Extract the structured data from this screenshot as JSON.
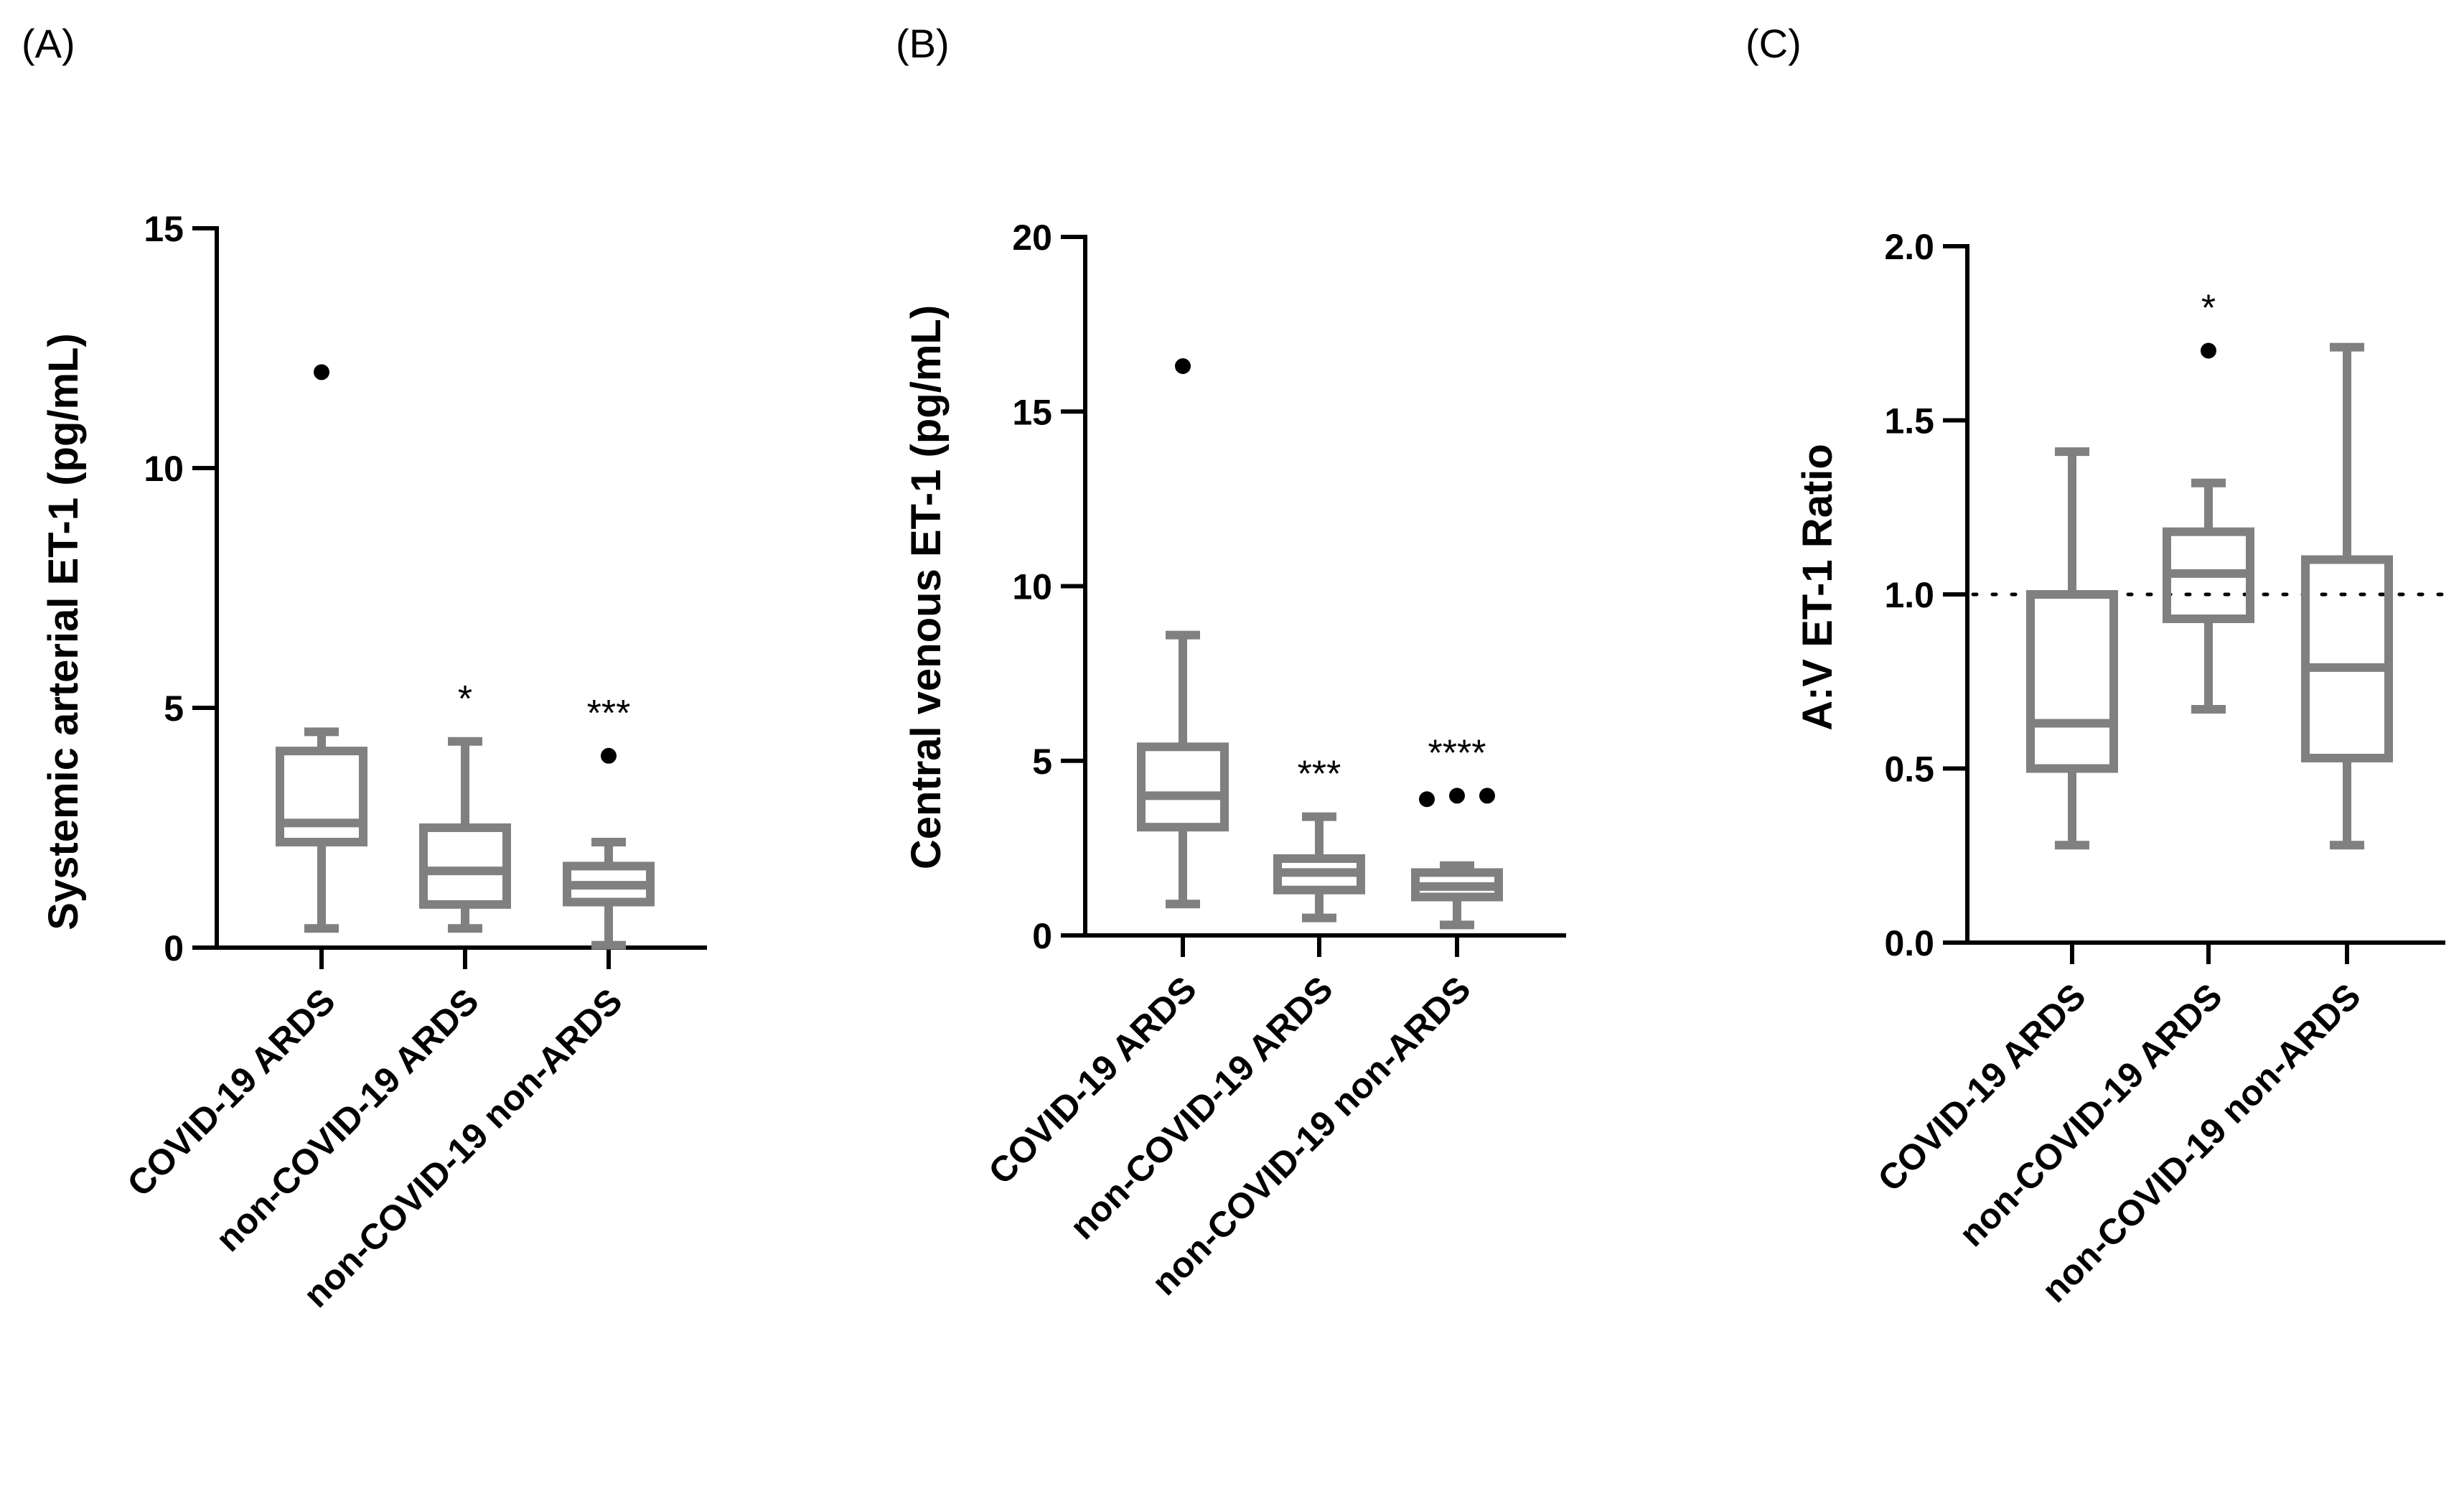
{
  "chart_data": [
    {
      "panel": "(A)",
      "type": "boxplot",
      "ylabel": "Systemic arterial ET-1 (pg/mL)",
      "ylim": [
        0,
        15
      ],
      "yticks": [
        0,
        5,
        10,
        15
      ],
      "categories": [
        "COVID-19 ARDS",
        "non-COVID-19 ARDS",
        "non-COVID-19 non-ARDS"
      ],
      "boxes": [
        {
          "whisker_low": 0.4,
          "q1": 2.2,
          "median": 2.6,
          "q3": 4.1,
          "whisker_high": 4.5,
          "outliers": [
            12.0
          ],
          "significance": ""
        },
        {
          "whisker_low": 0.4,
          "q1": 0.9,
          "median": 1.6,
          "q3": 2.5,
          "whisker_high": 4.3,
          "outliers": [],
          "significance": "*"
        },
        {
          "whisker_low": 0.05,
          "q1": 0.95,
          "median": 1.3,
          "q3": 1.7,
          "whisker_high": 2.2,
          "outliers": [
            4.0
          ],
          "significance": "***"
        }
      ],
      "reference_line": null
    },
    {
      "panel": "(B)",
      "type": "boxplot",
      "ylabel": "Central venous ET-1 (pg/mL)",
      "ylim": [
        0,
        20
      ],
      "yticks": [
        0,
        5,
        10,
        15,
        20
      ],
      "categories": [
        "COVID-19 ARDS",
        "non-COVID-19 ARDS",
        "non-COVID-19 non-ARDS"
      ],
      "boxes": [
        {
          "whisker_low": 0.9,
          "q1": 3.1,
          "median": 4.0,
          "q3": 5.4,
          "whisker_high": 8.6,
          "outliers": [
            16.3
          ],
          "significance": ""
        },
        {
          "whisker_low": 0.5,
          "q1": 1.3,
          "median": 1.8,
          "q3": 2.2,
          "whisker_high": 3.4,
          "outliers": [],
          "significance": "***"
        },
        {
          "whisker_low": 0.3,
          "q1": 1.1,
          "median": 1.4,
          "q3": 1.8,
          "whisker_high": 2.0,
          "outliers": [
            3.9,
            4.0,
            4.0
          ],
          "significance": "****"
        }
      ],
      "reference_line": null
    },
    {
      "panel": "(C)",
      "type": "boxplot",
      "ylabel": "A:V ET-1 Ratio",
      "ylim": [
        0,
        2
      ],
      "yticks": [
        "0.0",
        "0.5",
        "1.0",
        "1.5",
        "2.0"
      ],
      "categories": [
        "COVID-19 ARDS",
        "non-COVID-19 ARDS",
        "non-COVID-19 non-ARDS"
      ],
      "boxes": [
        {
          "whisker_low": 0.28,
          "q1": 0.5,
          "median": 0.63,
          "q3": 1.0,
          "whisker_high": 1.41,
          "outliers": [],
          "significance": ""
        },
        {
          "whisker_low": 0.67,
          "q1": 0.93,
          "median": 1.06,
          "q3": 1.18,
          "whisker_high": 1.32,
          "outliers": [
            1.7
          ],
          "significance": "*"
        },
        {
          "whisker_low": 0.28,
          "q1": 0.53,
          "median": 0.79,
          "q3": 1.1,
          "whisker_high": 1.71,
          "outliers": [],
          "significance": ""
        }
      ],
      "reference_line": 1.0
    }
  ],
  "style": {
    "box_color": "#808080",
    "axis_color": "#000000",
    "outlier_color": "#000000"
  }
}
